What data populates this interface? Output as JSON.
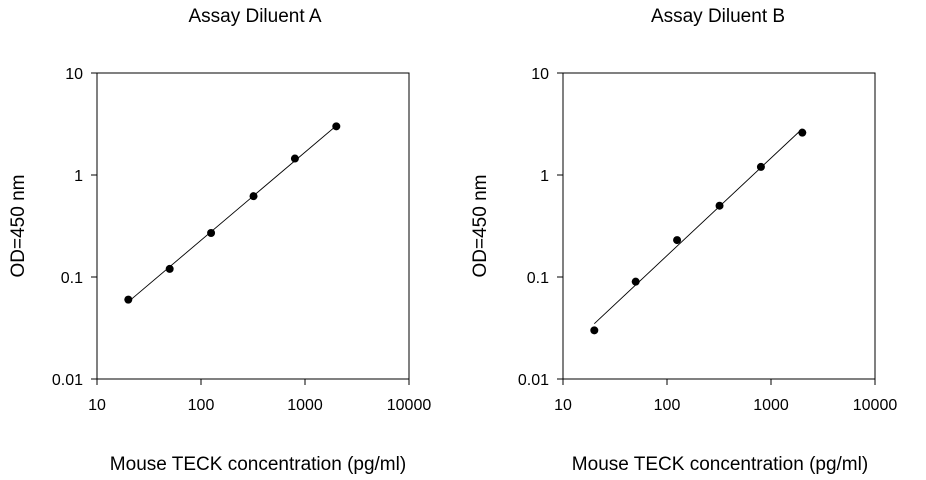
{
  "chart_data": [
    {
      "type": "scatter",
      "title": "Assay Diluent A",
      "xlabel": "Mouse TECK concentration (pg/ml)",
      "ylabel": "OD=450 nm",
      "xscale": "log",
      "yscale": "log",
      "xlim": [
        10,
        10000
      ],
      "ylim": [
        0.01,
        10
      ],
      "xticks": [
        10,
        100,
        1000,
        10000
      ],
      "xtick_labels": [
        "10",
        "100",
        "1000",
        "10000"
      ],
      "yticks": [
        0.01,
        0.1,
        1,
        10
      ],
      "ytick_labels": [
        "0.01",
        "0.1",
        "1",
        "10"
      ],
      "grid": false,
      "legend": "none",
      "fit_line": true,
      "series": [
        {
          "x": [
            20,
            50,
            125,
            320,
            800,
            2000
          ],
          "y": [
            0.06,
            0.12,
            0.27,
            0.62,
            1.45,
            3.0
          ]
        }
      ]
    },
    {
      "type": "scatter",
      "title": "Assay Diluent B",
      "xlabel": "Mouse TECK concentration (pg/ml)",
      "ylabel": "OD=450 nm",
      "xscale": "log",
      "yscale": "log",
      "xlim": [
        10,
        10000
      ],
      "ylim": [
        0.01,
        10
      ],
      "xticks": [
        10,
        100,
        1000,
        10000
      ],
      "xtick_labels": [
        "10",
        "100",
        "1000",
        "10000"
      ],
      "yticks": [
        0.01,
        0.1,
        1,
        10
      ],
      "ytick_labels": [
        "0.01",
        "0.1",
        "1",
        "10"
      ],
      "grid": false,
      "legend": "none",
      "fit_line": true,
      "series": [
        {
          "x": [
            20,
            50,
            125,
            320,
            800,
            2000
          ],
          "y": [
            0.03,
            0.09,
            0.23,
            0.5,
            1.2,
            2.6
          ]
        }
      ]
    }
  ]
}
